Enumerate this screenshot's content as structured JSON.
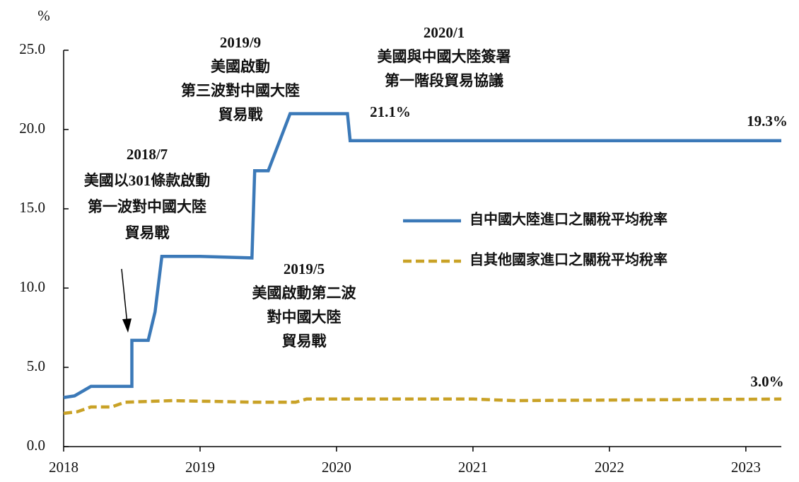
{
  "chart_data": {
    "type": "line",
    "y_label": "%",
    "xlim": [
      2018,
      2023.26
    ],
    "xticks": [
      2018,
      2019,
      2020,
      2021,
      2022,
      2023
    ],
    "ylim": [
      0,
      25
    ],
    "yticks": [
      {
        "value": 0,
        "label": "0.0"
      },
      {
        "value": 5,
        "label": "5.0"
      },
      {
        "value": 10,
        "label": "10.0"
      },
      {
        "value": 15,
        "label": "15.0"
      },
      {
        "value": 20,
        "label": "20.0"
      },
      {
        "value": 25,
        "label": "25.0"
      }
    ],
    "legend": "center-right",
    "series": [
      {
        "name": "自中國大陸進口之關稅平均稅率",
        "color": "#3b79b8",
        "style": "solid",
        "x": [
          2018.0,
          2018.08,
          2018.2,
          2018.5,
          2018.5,
          2018.62,
          2018.67,
          2018.72,
          2019.0,
          2019.38,
          2019.4,
          2019.5,
          2019.66,
          2020.08,
          2020.1,
          2023.26
        ],
        "values": [
          3.1,
          3.2,
          3.8,
          3.8,
          6.7,
          6.7,
          8.5,
          12.0,
          12.0,
          11.9,
          17.4,
          17.4,
          21.0,
          21.0,
          19.3,
          19.3
        ]
      },
      {
        "name": "自其他國家進口之關稅平均稅率",
        "color": "#c9a227",
        "style": "dashed",
        "x": [
          2018.0,
          2018.1,
          2018.2,
          2018.35,
          2018.45,
          2018.8,
          2019.4,
          2019.7,
          2019.78,
          2020.2,
          2021.0,
          2021.3,
          2023.26
        ],
        "values": [
          2.1,
          2.2,
          2.5,
          2.5,
          2.8,
          2.9,
          2.8,
          2.8,
          3.0,
          3.0,
          3.0,
          2.9,
          3.0
        ]
      }
    ],
    "annotations": [
      {
        "lines": [
          "2018/7",
          "美國以301條款啟動",
          "第一波對中國大陸",
          "貿易戰"
        ]
      },
      {
        "lines": [
          "2019/9",
          "美國啟動",
          "第三波對中國大陸",
          "貿易戰"
        ]
      },
      {
        "lines": [
          "2020/1",
          "美國與中國大陸簽署",
          "第一階段貿易協議"
        ]
      },
      {
        "lines": [
          "2019/5",
          "美國啟動第二波",
          "對中國大陸",
          "貿易戰"
        ]
      },
      {
        "lines": [
          "21.1%"
        ]
      },
      {
        "lines": [
          "19.3%"
        ]
      },
      {
        "lines": [
          "3.0%"
        ]
      }
    ]
  }
}
